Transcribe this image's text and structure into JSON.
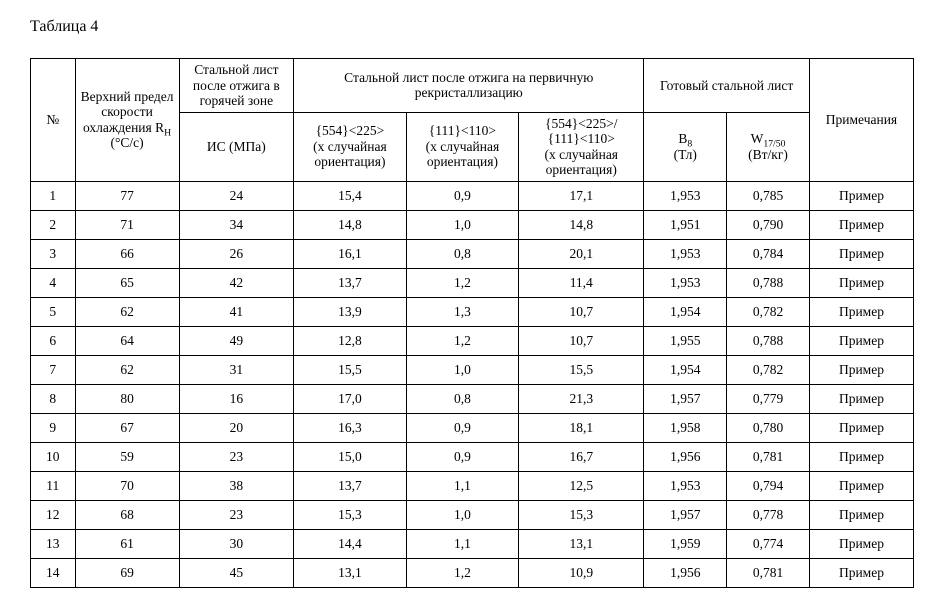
{
  "caption": "Таблица 4",
  "headers": {
    "num": "№",
    "rh_html": "Верхний предел скорости охлаждения R<sub>H</sub> (°C/c)",
    "hot_zone_group": "Стальной лист после отжига в горячей зоне",
    "is": "ИС (МПа)",
    "recryst_group": "Стальной лист после отжига на первичную рекристаллизацию",
    "o554_html": "{554}<225><br>(х случайная ориентация)",
    "o111_html": "{111}<110><br>(х случайная ориентация)",
    "orat_html": "{554}<225>/<br>{111}<110><br>(х случайная ориентация)",
    "finished_group": "Готовый стальной лист",
    "b8_html": "B<sub>8</sub><br>(Тл)",
    "w_html": "W<sub>17/50</sub><br>(Вт/кг)",
    "notes": "Примечания"
  },
  "rows": [
    {
      "n": "1",
      "rh": "77",
      "is": "24",
      "o554": "15,4",
      "o111": "0,9",
      "orat": "17,1",
      "b8": "1,953",
      "w": "0,785",
      "note": "Пример"
    },
    {
      "n": "2",
      "rh": "71",
      "is": "34",
      "o554": "14,8",
      "o111": "1,0",
      "orat": "14,8",
      "b8": "1,951",
      "w": "0,790",
      "note": "Пример"
    },
    {
      "n": "3",
      "rh": "66",
      "is": "26",
      "o554": "16,1",
      "o111": "0,8",
      "orat": "20,1",
      "b8": "1,953",
      "w": "0,784",
      "note": "Пример"
    },
    {
      "n": "4",
      "rh": "65",
      "is": "42",
      "o554": "13,7",
      "o111": "1,2",
      "orat": "11,4",
      "b8": "1,953",
      "w": "0,788",
      "note": "Пример"
    },
    {
      "n": "5",
      "rh": "62",
      "is": "41",
      "o554": "13,9",
      "o111": "1,3",
      "orat": "10,7",
      "b8": "1,954",
      "w": "0,782",
      "note": "Пример"
    },
    {
      "n": "6",
      "rh": "64",
      "is": "49",
      "o554": "12,8",
      "o111": "1,2",
      "orat": "10,7",
      "b8": "1,955",
      "w": "0,788",
      "note": "Пример"
    },
    {
      "n": "7",
      "rh": "62",
      "is": "31",
      "o554": "15,5",
      "o111": "1,0",
      "orat": "15,5",
      "b8": "1,954",
      "w": "0,782",
      "note": "Пример"
    },
    {
      "n": "8",
      "rh": "80",
      "is": "16",
      "o554": "17,0",
      "o111": "0,8",
      "orat": "21,3",
      "b8": "1,957",
      "w": "0,779",
      "note": "Пример"
    },
    {
      "n": "9",
      "rh": "67",
      "is": "20",
      "o554": "16,3",
      "o111": "0,9",
      "orat": "18,1",
      "b8": "1,958",
      "w": "0,780",
      "note": "Пример"
    },
    {
      "n": "10",
      "rh": "59",
      "is": "23",
      "o554": "15,0",
      "o111": "0,9",
      "orat": "16,7",
      "b8": "1,956",
      "w": "0,781",
      "note": "Пример"
    },
    {
      "n": "11",
      "rh": "70",
      "is": "38",
      "o554": "13,7",
      "o111": "1,1",
      "orat": "12,5",
      "b8": "1,953",
      "w": "0,794",
      "note": "Пример"
    },
    {
      "n": "12",
      "rh": "68",
      "is": "23",
      "o554": "15,3",
      "o111": "1,0",
      "orat": "15,3",
      "b8": "1,957",
      "w": "0,778",
      "note": "Пример"
    },
    {
      "n": "13",
      "rh": "61",
      "is": "30",
      "o554": "14,4",
      "o111": "1,1",
      "orat": "13,1",
      "b8": "1,959",
      "w": "0,774",
      "note": "Пример"
    },
    {
      "n": "14",
      "rh": "69",
      "is": "45",
      "o554": "13,1",
      "o111": "1,2",
      "orat": "10,9",
      "b8": "1,956",
      "w": "0,781",
      "note": "Пример"
    }
  ]
}
